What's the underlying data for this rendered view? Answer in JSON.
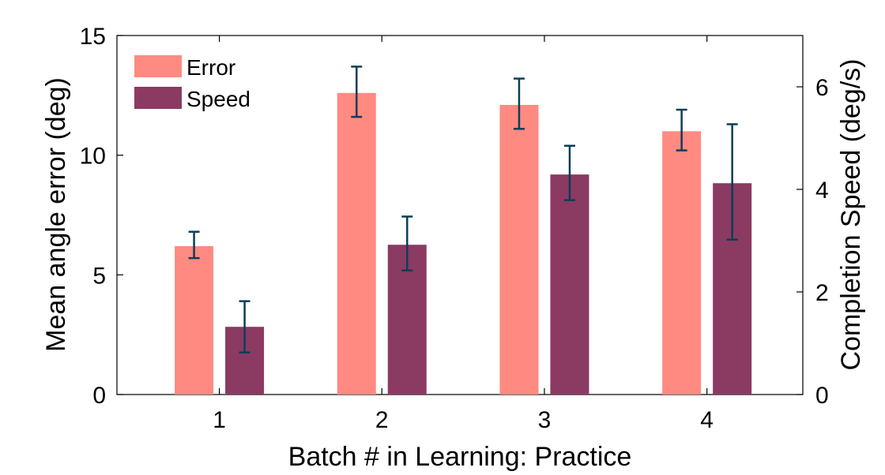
{
  "chart_data": {
    "type": "bar",
    "xlabel": "Batch # in Learning: Practice",
    "ylabel_left": "Mean angle error (deg)",
    "ylabel_right": "Completion Speed (deg/s)",
    "categories": [
      "1",
      "2",
      "3",
      "4"
    ],
    "ylim_left": [
      0,
      15
    ],
    "ylim_right": [
      0,
      7
    ],
    "yticks_left": [
      "0",
      "5",
      "10",
      "15"
    ],
    "yticks_right": [
      "0",
      "2",
      "4",
      "6"
    ],
    "grid": false,
    "legend_position": "top-left",
    "series": [
      {
        "name": "Error",
        "axis": "left",
        "color": "#ff8a82",
        "values": [
          6.2,
          12.6,
          12.1,
          11.0
        ],
        "error_low": [
          5.7,
          11.6,
          11.1,
          10.2
        ],
        "error_high": [
          6.8,
          13.7,
          13.2,
          11.9
        ]
      },
      {
        "name": "Speed",
        "axis": "right",
        "color": "#8b3a62",
        "values": [
          1.32,
          2.92,
          4.29,
          4.12
        ],
        "error_low": [
          0.82,
          2.42,
          3.79,
          3.02
        ],
        "error_high": [
          1.82,
          3.47,
          4.85,
          5.27
        ]
      }
    ],
    "error_bar_color": "#0e3d56"
  }
}
